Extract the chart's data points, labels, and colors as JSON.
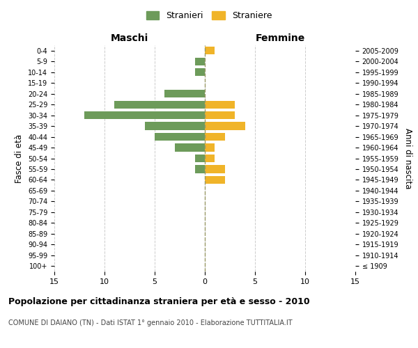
{
  "age_groups": [
    "100+",
    "95-99",
    "90-94",
    "85-89",
    "80-84",
    "75-79",
    "70-74",
    "65-69",
    "60-64",
    "55-59",
    "50-54",
    "45-49",
    "40-44",
    "35-39",
    "30-34",
    "25-29",
    "20-24",
    "15-19",
    "10-14",
    "5-9",
    "0-4"
  ],
  "birth_years": [
    "≤ 1909",
    "1910-1914",
    "1915-1919",
    "1920-1924",
    "1925-1929",
    "1930-1934",
    "1935-1939",
    "1940-1944",
    "1945-1949",
    "1950-1954",
    "1955-1959",
    "1960-1964",
    "1965-1969",
    "1970-1974",
    "1975-1979",
    "1980-1984",
    "1985-1989",
    "1990-1994",
    "1995-1999",
    "2000-2004",
    "2005-2009"
  ],
  "maschi": [
    0,
    0,
    0,
    0,
    0,
    0,
    0,
    0,
    0,
    1,
    1,
    3,
    5,
    6,
    12,
    9,
    4,
    0,
    1,
    1,
    0
  ],
  "femmine": [
    0,
    0,
    0,
    0,
    0,
    0,
    0,
    0,
    2,
    2,
    1,
    1,
    2,
    4,
    3,
    3,
    0,
    0,
    0,
    0,
    1
  ],
  "maschi_color": "#6d9b5a",
  "femmine_color": "#f0b429",
  "xlim": 15,
  "title": "Popolazione per cittadinanza straniera per età e sesso - 2010",
  "subtitle": "COMUNE DI DAIANO (TN) - Dati ISTAT 1° gennaio 2010 - Elaborazione TUTTITALIA.IT",
  "xlabel_left": "Maschi",
  "xlabel_right": "Femmine",
  "ylabel_left": "Fasce di età",
  "ylabel_right": "Anni di nascita",
  "legend_maschi": "Stranieri",
  "legend_femmine": "Straniere",
  "bg_color": "#ffffff",
  "grid_color": "#cccccc"
}
